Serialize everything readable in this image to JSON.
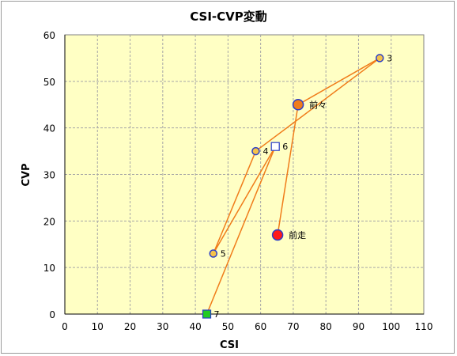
{
  "chart_data": {
    "type": "scatter",
    "title": "CSI-CVP変動",
    "xlabel": "CSI",
    "ylabel": "CVP",
    "xlim": [
      0,
      110
    ],
    "ylim": [
      0,
      60
    ],
    "xticks": [
      0,
      10,
      20,
      30,
      40,
      50,
      60,
      70,
      80,
      90,
      100,
      110
    ],
    "yticks": [
      0,
      10,
      20,
      30,
      40,
      50,
      60
    ],
    "grid": true,
    "colors": {
      "plot_bg": "#ffffc4",
      "grid": "#a6a6a6",
      "line": "#f07c1a",
      "point_fill": "#f5c24a",
      "point_edge": "#2a3ec8",
      "prev_fill": "#f07c1a",
      "last_fill": "#ff1a1a",
      "square_fill": "#ffffff",
      "start_fill": "#22cc22",
      "start_edge": "#2a3ec8"
    },
    "path_order": [
      "7",
      "6",
      "5",
      "4",
      "3",
      "前々",
      "前走"
    ],
    "points": [
      {
        "label": "前走",
        "x": 65.2,
        "y": 17.0,
        "marker": "circle-large",
        "color_key": "last_fill"
      },
      {
        "label": "前々",
        "x": 71.5,
        "y": 45.0,
        "marker": "circle-large",
        "color_key": "prev_fill"
      },
      {
        "label": "3",
        "x": 96.5,
        "y": 55.0,
        "marker": "circle",
        "color_key": "point_fill"
      },
      {
        "label": "4",
        "x": 58.5,
        "y": 35.0,
        "marker": "circle",
        "color_key": "point_fill"
      },
      {
        "label": "5",
        "x": 45.5,
        "y": 13.0,
        "marker": "circle",
        "color_key": "point_fill"
      },
      {
        "label": "6",
        "x": 64.5,
        "y": 36.0,
        "marker": "square",
        "color_key": "square_fill"
      },
      {
        "label": "7",
        "x": 43.5,
        "y": 0.0,
        "marker": "square",
        "color_key": "start_fill"
      }
    ]
  }
}
